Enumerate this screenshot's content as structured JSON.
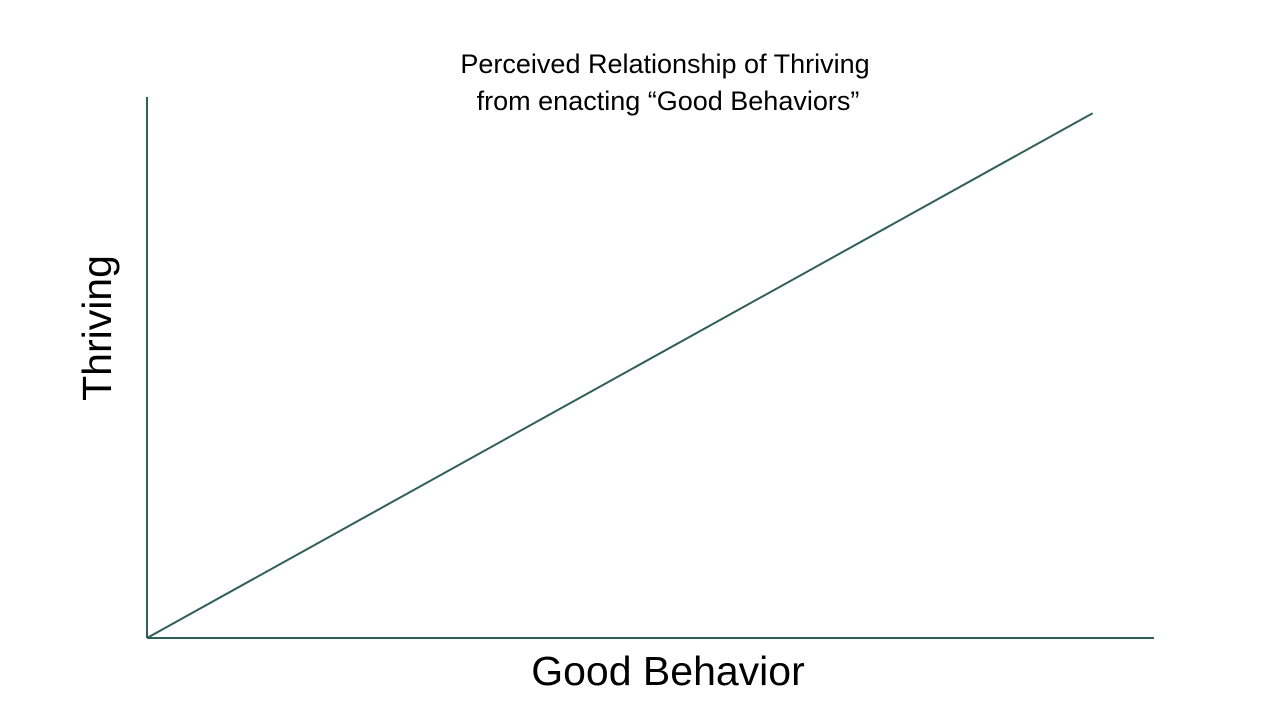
{
  "chart_data": {
    "type": "line",
    "title": [
      "Perceived Relationship of Thriving",
      "from enacting “Good Behaviors”"
    ],
    "x_label": "Good Behavior",
    "y_label": "Thriving",
    "x": [
      0,
      94
    ],
    "values": [
      0,
      97
    ],
    "color": "#2f5f55",
    "xlim": [
      0,
      100
    ],
    "ylim": [
      0,
      100
    ]
  }
}
